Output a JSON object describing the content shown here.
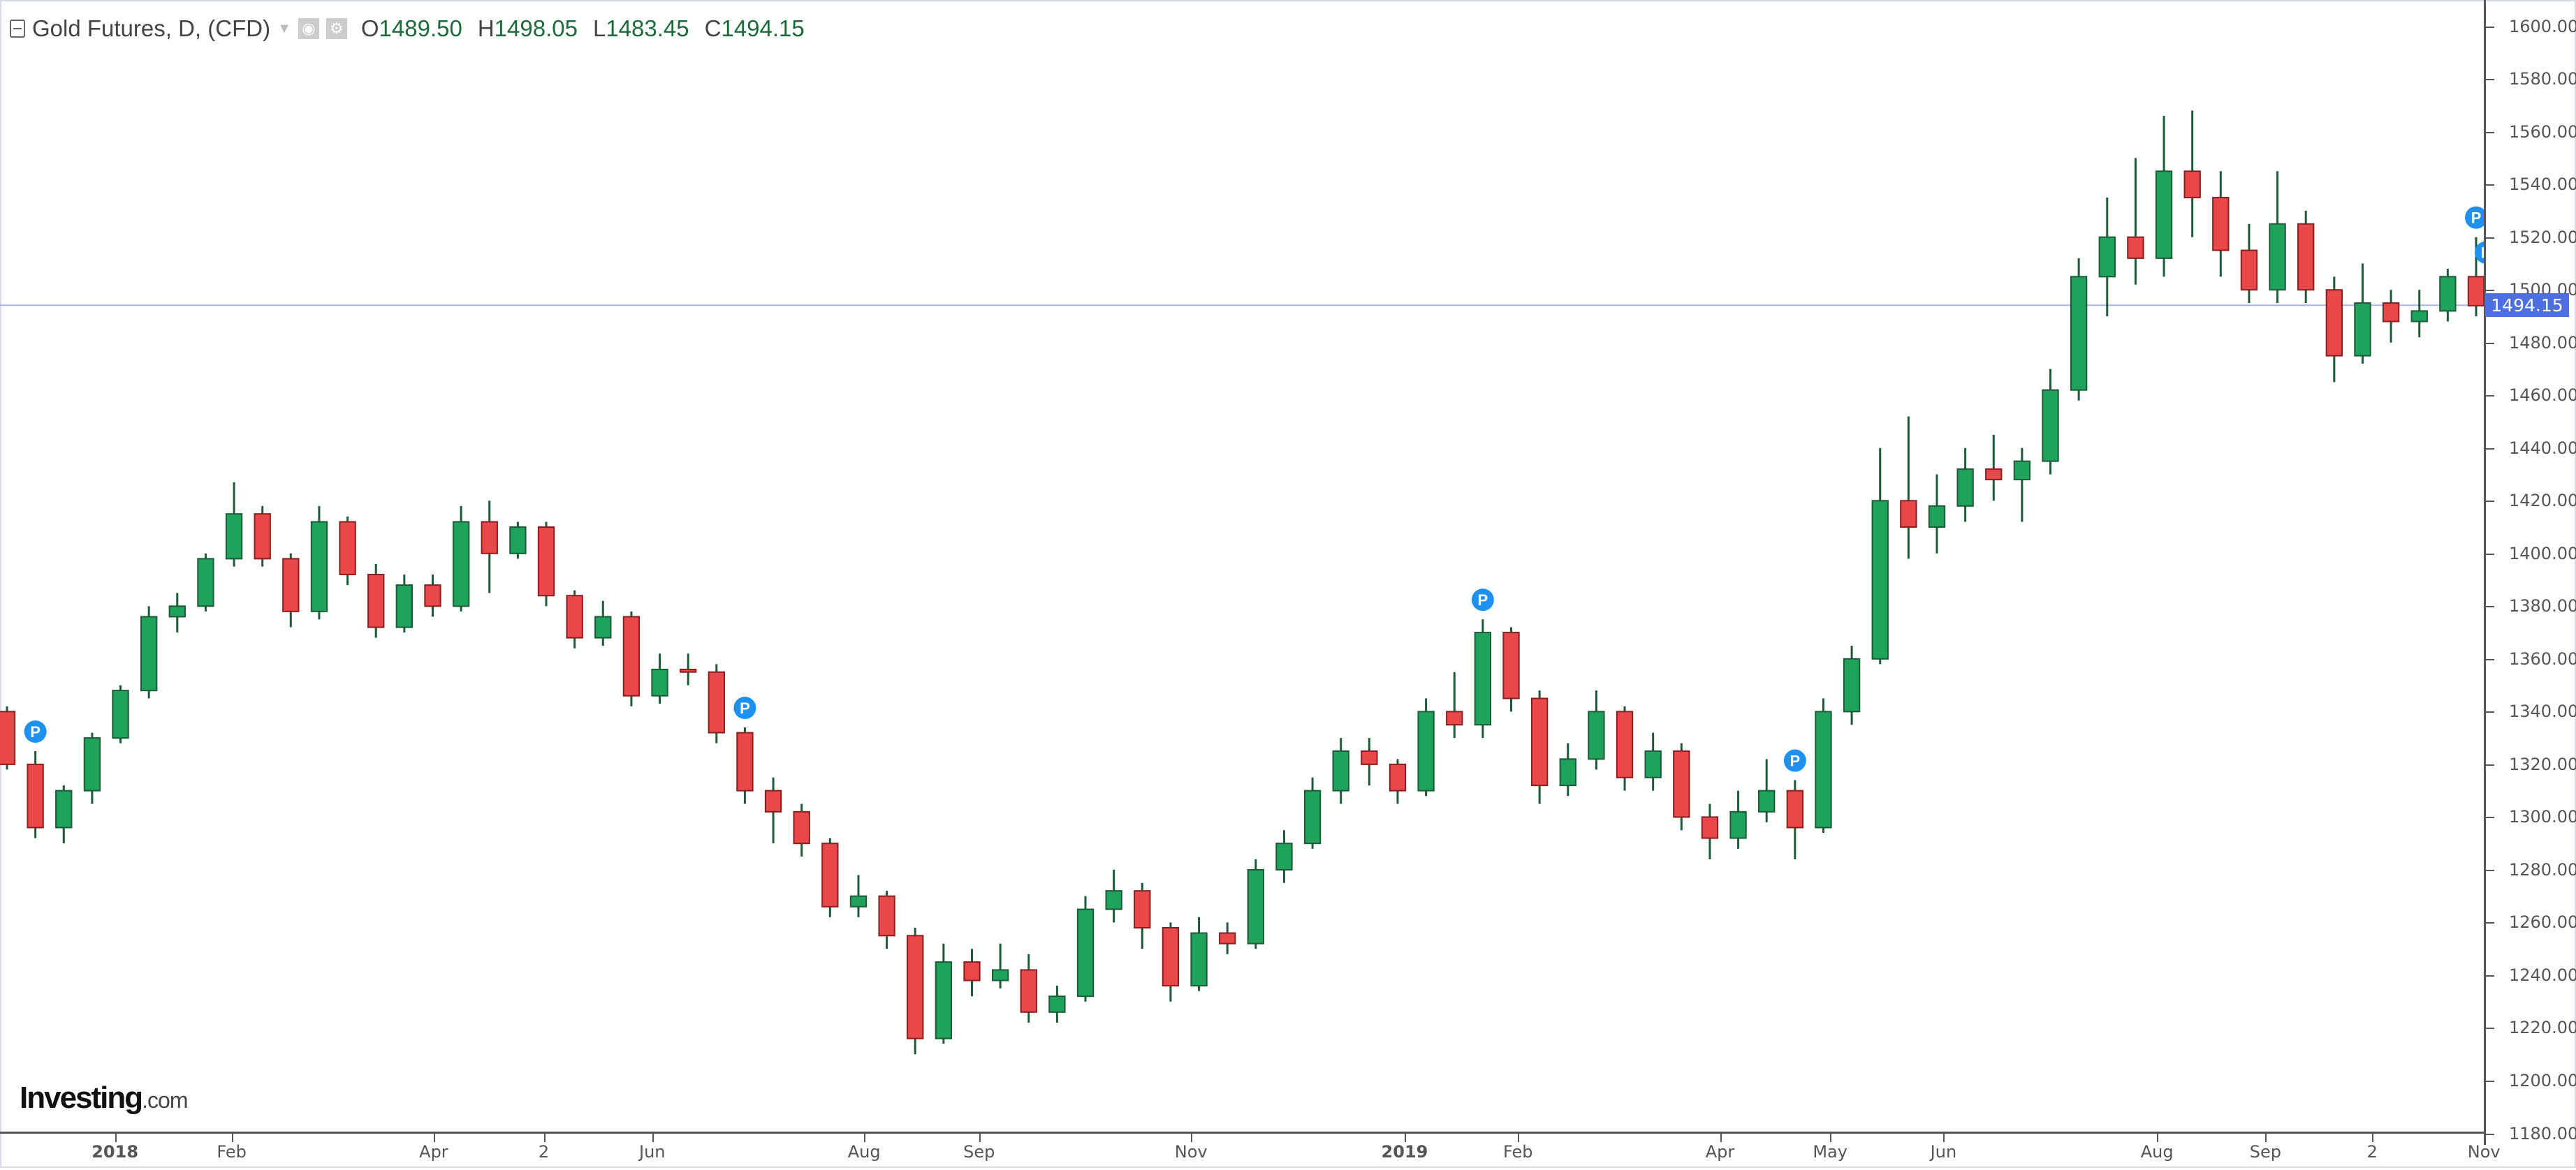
{
  "header": {
    "title": "Gold Futures, D, (CFD)",
    "ohlc": [
      {
        "key": "O",
        "value": "1489.50"
      },
      {
        "key": "H",
        "value": "1498.05"
      },
      {
        "key": "L",
        "value": "1483.45"
      },
      {
        "key": "C",
        "value": "1494.15"
      }
    ]
  },
  "logo": {
    "main": "Investing",
    "suffix": ".com"
  },
  "current_price_label": "1494.15",
  "colors": {
    "up": "#1fa35a",
    "down": "#e8484a",
    "wick": "#1d5a38",
    "price_line": "#4d6fe0",
    "marker": "#1e90f0"
  },
  "chart_data": {
    "type": "candlestick",
    "title": "Gold Futures, D, (CFD)",
    "ylim": [
      1180,
      1600
    ],
    "y_ticks": [
      "1180.00",
      "1200.00",
      "1220.00",
      "1240.00",
      "1260.00",
      "1280.00",
      "1300.00",
      "1320.00",
      "1340.00",
      "1360.00",
      "1380.00",
      "1400.00",
      "1420.00",
      "1440.00",
      "1460.00",
      "1480.00",
      "1500.00",
      "1520.00",
      "1540.00",
      "1560.00",
      "1580.00",
      "1600.00"
    ],
    "x_ticks": [
      "2018",
      "Feb",
      "Apr",
      "2",
      "Jun",
      "Aug",
      "Sep",
      "Nov",
      "2019",
      "Feb",
      "Apr",
      "May",
      "Jun",
      "Aug",
      "Sep",
      "2",
      "Nov"
    ],
    "current_price": 1494.15,
    "marker_label": "P",
    "markers": [
      1,
      26,
      52,
      63,
      87,
      88
    ],
    "ohlc": [
      [
        1340,
        1342,
        1318,
        1320
      ],
      [
        1320,
        1325,
        1292,
        1296
      ],
      [
        1296,
        1312,
        1290,
        1310
      ],
      [
        1310,
        1332,
        1305,
        1330
      ],
      [
        1330,
        1350,
        1328,
        1348
      ],
      [
        1348,
        1380,
        1345,
        1376
      ],
      [
        1376,
        1385,
        1370,
        1380
      ],
      [
        1380,
        1400,
        1378,
        1398
      ],
      [
        1398,
        1427,
        1395,
        1415
      ],
      [
        1415,
        1418,
        1395,
        1398
      ],
      [
        1398,
        1400,
        1372,
        1378
      ],
      [
        1378,
        1418,
        1375,
        1412
      ],
      [
        1412,
        1414,
        1388,
        1392
      ],
      [
        1392,
        1396,
        1368,
        1372
      ],
      [
        1372,
        1392,
        1370,
        1388
      ],
      [
        1388,
        1392,
        1376,
        1380
      ],
      [
        1380,
        1418,
        1378,
        1412
      ],
      [
        1412,
        1420,
        1385,
        1400
      ],
      [
        1400,
        1412,
        1398,
        1410
      ],
      [
        1410,
        1412,
        1380,
        1384
      ],
      [
        1384,
        1386,
        1364,
        1368
      ],
      [
        1368,
        1382,
        1365,
        1376
      ],
      [
        1376,
        1378,
        1342,
        1346
      ],
      [
        1346,
        1362,
        1343,
        1356
      ],
      [
        1356,
        1362,
        1350,
        1355
      ],
      [
        1355,
        1358,
        1328,
        1332
      ],
      [
        1332,
        1334,
        1305,
        1310
      ],
      [
        1310,
        1315,
        1290,
        1302
      ],
      [
        1302,
        1305,
        1285,
        1290
      ],
      [
        1290,
        1292,
        1262,
        1266
      ],
      [
        1266,
        1278,
        1262,
        1270
      ],
      [
        1270,
        1272,
        1250,
        1255
      ],
      [
        1255,
        1258,
        1210,
        1216
      ],
      [
        1216,
        1252,
        1214,
        1245
      ],
      [
        1245,
        1250,
        1232,
        1238
      ],
      [
        1238,
        1252,
        1235,
        1242
      ],
      [
        1242,
        1248,
        1222,
        1226
      ],
      [
        1226,
        1236,
        1222,
        1232
      ],
      [
        1232,
        1270,
        1230,
        1265
      ],
      [
        1265,
        1280,
        1260,
        1272
      ],
      [
        1272,
        1275,
        1250,
        1258
      ],
      [
        1258,
        1260,
        1230,
        1236
      ],
      [
        1236,
        1262,
        1234,
        1256
      ],
      [
        1256,
        1260,
        1248,
        1252
      ],
      [
        1252,
        1284,
        1250,
        1280
      ],
      [
        1280,
        1295,
        1275,
        1290
      ],
      [
        1290,
        1315,
        1288,
        1310
      ],
      [
        1310,
        1330,
        1305,
        1325
      ],
      [
        1325,
        1330,
        1312,
        1320
      ],
      [
        1320,
        1322,
        1305,
        1310
      ],
      [
        1310,
        1345,
        1308,
        1340
      ],
      [
        1340,
        1355,
        1330,
        1335
      ],
      [
        1335,
        1375,
        1330,
        1370
      ],
      [
        1370,
        1372,
        1340,
        1345
      ],
      [
        1345,
        1348,
        1305,
        1312
      ],
      [
        1312,
        1328,
        1308,
        1322
      ],
      [
        1322,
        1348,
        1318,
        1340
      ],
      [
        1340,
        1342,
        1310,
        1315
      ],
      [
        1315,
        1332,
        1310,
        1325
      ],
      [
        1325,
        1328,
        1295,
        1300
      ],
      [
        1300,
        1305,
        1284,
        1292
      ],
      [
        1292,
        1310,
        1288,
        1302
      ],
      [
        1302,
        1322,
        1298,
        1310
      ],
      [
        1310,
        1314,
        1284,
        1296
      ],
      [
        1296,
        1345,
        1294,
        1340
      ],
      [
        1340,
        1365,
        1335,
        1360
      ],
      [
        1360,
        1440,
        1358,
        1420
      ],
      [
        1420,
        1452,
        1398,
        1410
      ],
      [
        1410,
        1430,
        1400,
        1418
      ],
      [
        1418,
        1440,
        1412,
        1432
      ],
      [
        1432,
        1445,
        1420,
        1428
      ],
      [
        1428,
        1440,
        1412,
        1435
      ],
      [
        1435,
        1470,
        1430,
        1462
      ],
      [
        1462,
        1512,
        1458,
        1505
      ],
      [
        1505,
        1535,
        1490,
        1520
      ],
      [
        1520,
        1550,
        1502,
        1512
      ],
      [
        1512,
        1566,
        1505,
        1545
      ],
      [
        1545,
        1568,
        1520,
        1535
      ],
      [
        1535,
        1545,
        1505,
        1515
      ],
      [
        1515,
        1525,
        1495,
        1500
      ],
      [
        1500,
        1545,
        1495,
        1525
      ],
      [
        1525,
        1530,
        1495,
        1500
      ],
      [
        1500,
        1505,
        1465,
        1475
      ],
      [
        1475,
        1510,
        1472,
        1495
      ],
      [
        1495,
        1500,
        1480,
        1488
      ],
      [
        1488,
        1500,
        1482,
        1492
      ],
      [
        1492,
        1508,
        1488,
        1505
      ],
      [
        1505,
        1520,
        1490,
        1494
      ]
    ]
  }
}
